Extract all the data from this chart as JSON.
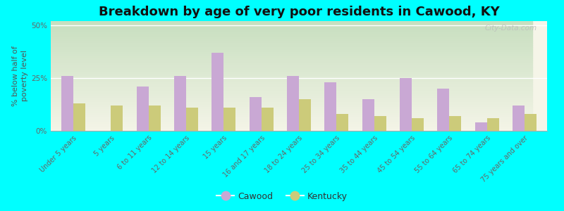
{
  "title": "Breakdown by age of very poor residents in Cawood, KY",
  "categories": [
    "Under 5 years",
    "5 years",
    "6 to 11 years",
    "12 to 14 years",
    "15 years",
    "16 and 17 years",
    "18 to 24 years",
    "25 to 34 years",
    "35 to 44 years",
    "45 to 54 years",
    "55 to 64 years",
    "65 to 74 years",
    "75 years and over"
  ],
  "cawood": [
    26,
    0,
    21,
    26,
    37,
    16,
    26,
    23,
    15,
    25,
    20,
    4,
    12
  ],
  "kentucky": [
    13,
    12,
    12,
    11,
    11,
    11,
    15,
    8,
    7,
    6,
    7,
    6,
    8
  ],
  "cawood_color": "#c9a8d4",
  "kentucky_color": "#cccb7a",
  "bg_outer": "#00ffff",
  "bg_top": "#c8dfc0",
  "bg_bottom": "#f5f5e8",
  "ylabel": "% below half of\npoverty level",
  "ylim": [
    0,
    52
  ],
  "yticks": [
    0,
    25,
    50
  ],
  "ytick_labels": [
    "0%",
    "25%",
    "50%"
  ],
  "title_fontsize": 13,
  "axis_label_fontsize": 8,
  "tick_fontsize": 7.5,
  "watermark": "City-Data.com"
}
